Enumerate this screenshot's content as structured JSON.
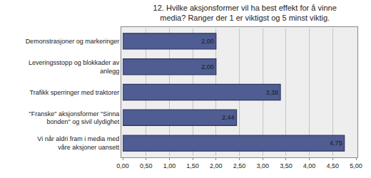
{
  "chart_data": {
    "type": "bar",
    "orientation": "horizontal",
    "title": "12. Hvilke aksjonsformer vil ha best effekt for å vinne\nmedia? Ranger der 1 er viktigst og 5 minst viktig.",
    "categories": [
      "Demonstrasjoner og markeringer",
      "Leveringsstopp og blokkader av\nanlegg",
      "Trafikk sperringer med traktorer",
      "\"Franske\" aksjonsformer \"Sinna\nbonden\" og sivil ulydighet",
      "Vi når aldri fram i media med\nvåre aksjoner uansett"
    ],
    "values": [
      2.0,
      2.0,
      3.38,
      2.44,
      4.75
    ],
    "value_labels": [
      "2,00",
      "2,00",
      "3,38",
      "2,44",
      "4,75"
    ],
    "data_labels": true,
    "color": "#4f5d92",
    "xlim": [
      0,
      5
    ],
    "xticks": [
      {
        "value": 0,
        "label": "0,00"
      },
      {
        "value": 0.5,
        "label": "0,50"
      },
      {
        "value": 1,
        "label": "1,00"
      },
      {
        "value": 1.5,
        "label": "1,50"
      },
      {
        "value": 2,
        "label": "2,00"
      },
      {
        "value": 2.5,
        "label": "2,50"
      },
      {
        "value": 3,
        "label": "3,00"
      },
      {
        "value": 3.5,
        "label": "3,50"
      },
      {
        "value": 4,
        "label": "4,00"
      },
      {
        "value": 4.5,
        "label": "4,50"
      },
      {
        "value": 5,
        "label": "5,00"
      }
    ],
    "grid": true
  }
}
